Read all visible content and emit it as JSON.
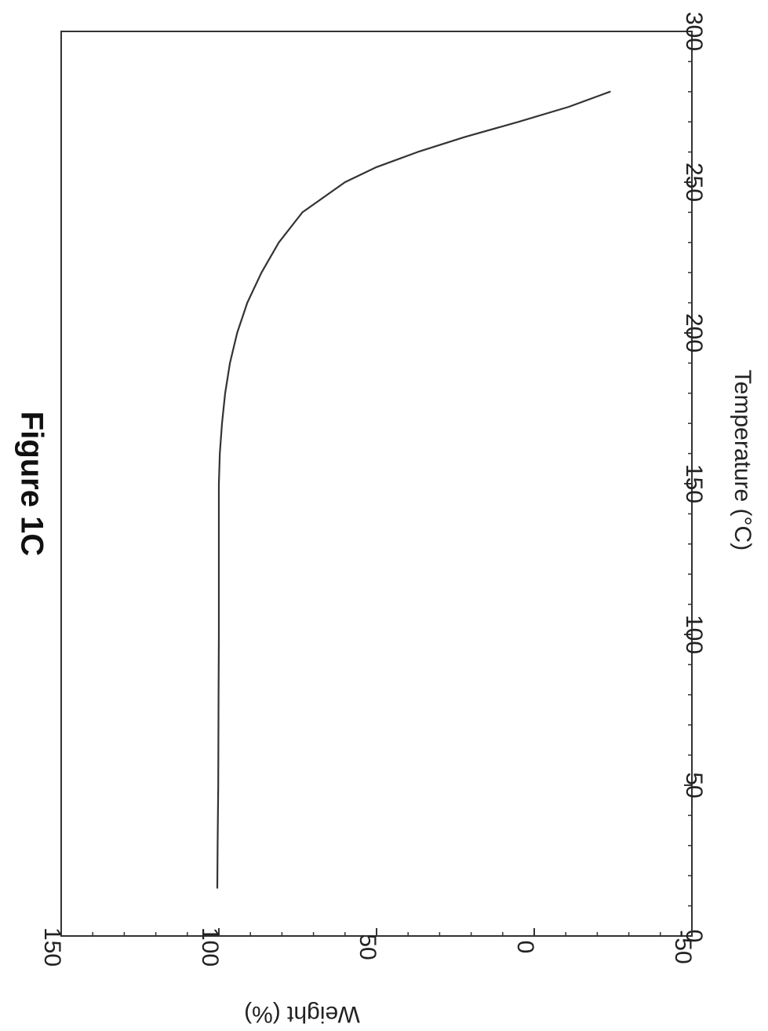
{
  "chart_data": {
    "type": "line",
    "title": "Figure 1C",
    "xlabel": "Temperature (°C)",
    "ylabel": "Weight (%)",
    "xlim": [
      0,
      300
    ],
    "ylim": [
      -50,
      150
    ],
    "x_ticks": [
      0,
      50,
      100,
      150,
      200,
      250,
      300
    ],
    "y_ticks": [
      -50,
      0,
      50,
      100,
      150
    ],
    "x_tick_labels": [
      "0",
      "50",
      "100",
      "150",
      "200",
      "250",
      "300"
    ],
    "y_tick_labels": [
      "-50",
      "0",
      "50",
      "100",
      "150"
    ],
    "grid": false,
    "orientation": "rotated 90° clockwise",
    "series": [
      {
        "values_x": [
          16,
          30,
          50,
          80,
          100,
          130,
          150,
          160,
          170,
          180,
          190,
          200,
          210,
          220,
          230,
          240,
          250,
          255,
          260,
          265,
          270,
          275,
          280
        ],
        "values_y": [
          100.5,
          100.4,
          100.2,
          100.1,
          100,
          100,
          100,
          99.7,
          99,
          98,
          96.5,
          94.2,
          91,
          86.5,
          81,
          73.5,
          60,
          50,
          37,
          22,
          5,
          -11,
          -24
        ],
        "color": "#333333"
      }
    ]
  }
}
